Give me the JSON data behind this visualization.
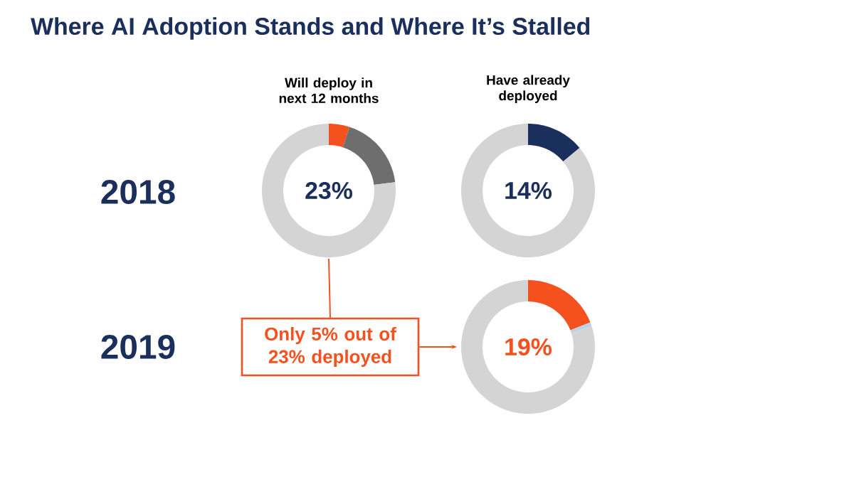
{
  "chart_data": [
    {
      "type": "other",
      "title": "Where AI Adoption Stands and Where It’s Stalled",
      "annotations": [
        "2018",
        "2019",
        "Only 5% out of 23% deployed"
      ]
    },
    {
      "type": "donut",
      "title": "Will deploy in next 12 months",
      "categories": [
        null,
        null,
        null
      ],
      "values": [
        5,
        18,
        77
      ],
      "colors": [
        "#f4511e",
        "#6e6e6e",
        "#d4d4d4"
      ],
      "annotations": [
        "23%"
      ]
    },
    {
      "type": "donut",
      "title": "Have already deployed",
      "categories": [
        null,
        null
      ],
      "values": [
        14,
        86
      ],
      "colors": [
        "#1a2f5c",
        "#d4d4d4"
      ],
      "annotations": [
        "14%"
      ]
    },
    {
      "type": "donut",
      "categories": [
        null,
        null,
        null
      ],
      "values": [
        19,
        1,
        80
      ],
      "colors": [
        "#f4511e",
        "#b7d3ea",
        "#d4d4d4"
      ],
      "annotations": [
        "19%"
      ]
    }
  ]
}
